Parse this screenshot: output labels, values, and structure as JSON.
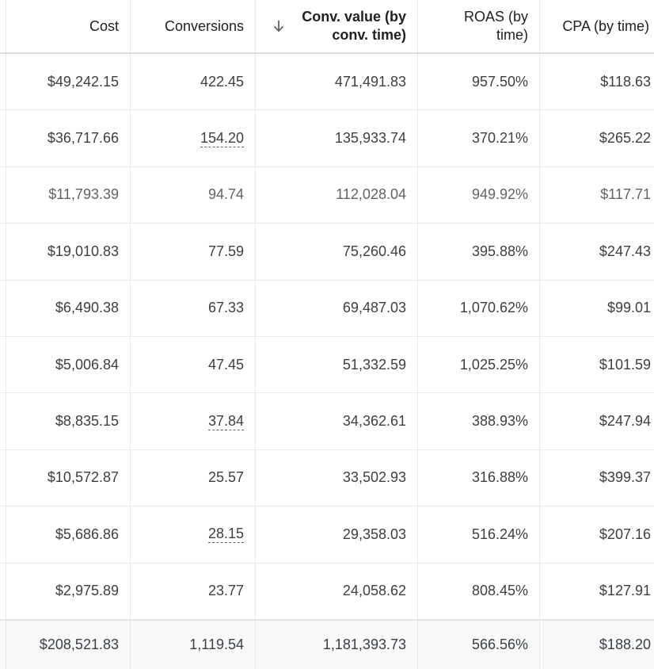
{
  "header": {
    "cost": "Cost",
    "conversions": "Conversions",
    "conv_value_line1": "Conv. value (by",
    "conv_value_line2": "conv. time)",
    "roas_line1": "ROAS (by",
    "roas_line2": "time)",
    "cpa": "CPA (by time)",
    "sort_icon": "arrow-down-icon"
  },
  "rows": [
    {
      "cost": "$49,242.15",
      "conversions": "422.45",
      "conv_value": "471,491.83",
      "roas": "957.50%",
      "cpa": "$118.63"
    },
    {
      "cost": "$36,717.66",
      "conversions": "154.20",
      "conv_value": "135,933.74",
      "roas": "370.21%",
      "cpa": "$265.22"
    },
    {
      "cost": "$11,793.39",
      "conversions": "94.74",
      "conv_value": "112,028.04",
      "roas": "949.92%",
      "cpa": "$117.71"
    },
    {
      "cost": "$19,010.83",
      "conversions": "77.59",
      "conv_value": "75,260.46",
      "roas": "395.88%",
      "cpa": "$247.43"
    },
    {
      "cost": "$6,490.38",
      "conversions": "67.33",
      "conv_value": "69,487.03",
      "roas": "1,070.62%",
      "cpa": "$99.01"
    },
    {
      "cost": "$5,006.84",
      "conversions": "47.45",
      "conv_value": "51,332.59",
      "roas": "1,025.25%",
      "cpa": "$101.59"
    },
    {
      "cost": "$8,835.15",
      "conversions": "37.84",
      "conv_value": "34,362.61",
      "roas": "388.93%",
      "cpa": "$247.94"
    },
    {
      "cost": "$10,572.87",
      "conversions": "25.57",
      "conv_value": "33,502.93",
      "roas": "316.88%",
      "cpa": "$399.37"
    },
    {
      "cost": "$5,686.86",
      "conversions": "28.15",
      "conv_value": "29,358.03",
      "roas": "516.24%",
      "cpa": "$207.16"
    },
    {
      "cost": "$2,975.89",
      "conversions": "23.77",
      "conv_value": "24,058.62",
      "roas": "808.45%",
      "cpa": "$127.91"
    }
  ],
  "total": {
    "cost": "$208,521.83",
    "conversions": "1,119.54",
    "conv_value": "1,181,393.73",
    "roas": "566.56%",
    "cpa": "$188.20"
  }
}
